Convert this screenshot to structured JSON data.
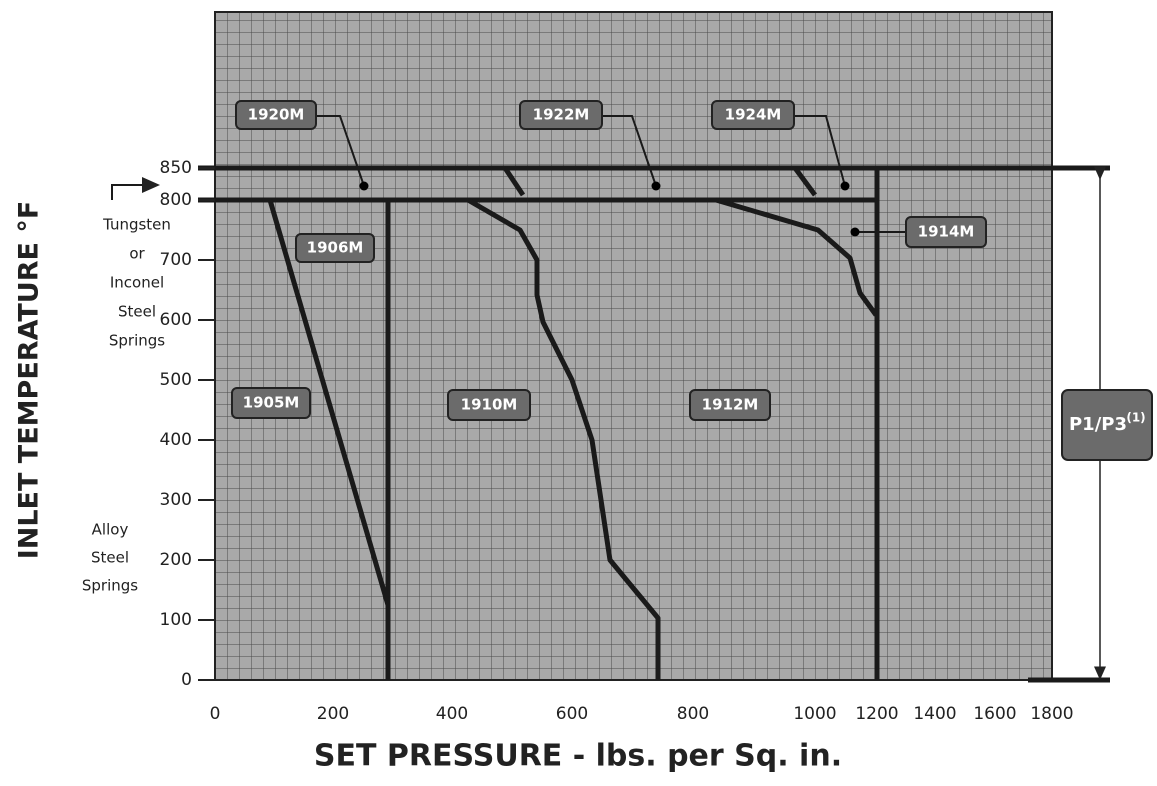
{
  "axes": {
    "y_title": "INLET TEMPERATURE °F",
    "x_title": "SET PRESSURE - lbs. per Sq. in.",
    "y_ticks": [
      "0",
      "100",
      "200",
      "300",
      "400",
      "500",
      "600",
      "700",
      "800",
      "850"
    ],
    "x_ticks": [
      "0",
      "200",
      "400",
      "600",
      "800",
      "1000",
      "1200",
      "1400",
      "1600",
      "1800"
    ]
  },
  "side_labels": {
    "tungsten": [
      "Tungsten",
      "or",
      "Inconel",
      "Steel",
      "Springs"
    ],
    "alloy": [
      "Alloy",
      "Steel",
      "Springs"
    ]
  },
  "models": {
    "m1920": "1920M",
    "m1922": "1922M",
    "m1924": "1924M",
    "m1906": "1906M",
    "m1914": "1914M",
    "m1905": "1905M",
    "m1910": "1910M",
    "m1912": "1912M"
  },
  "pressure_label": {
    "text": "P1/P3",
    "note": "(1)"
  }
}
